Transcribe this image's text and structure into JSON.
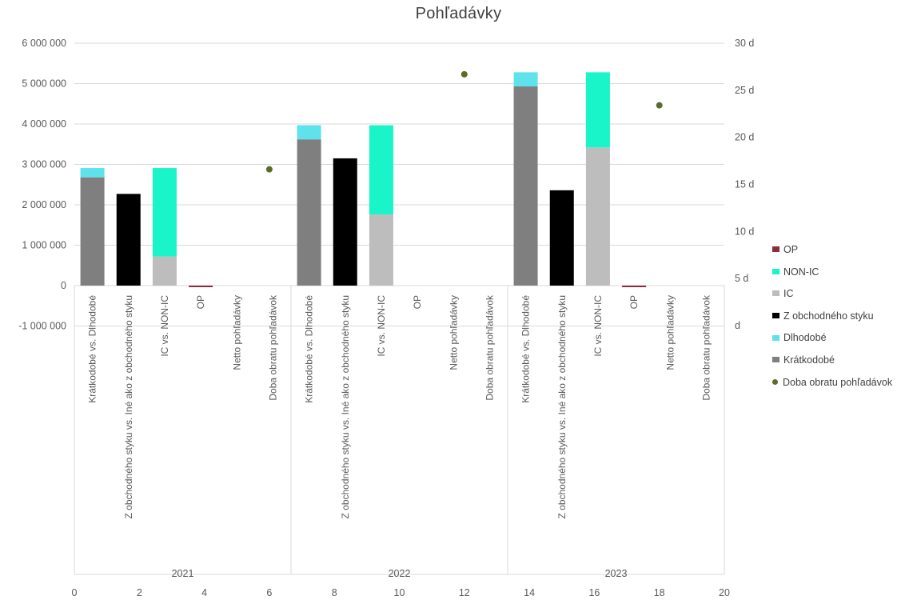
{
  "title": "Pohľadávky",
  "colors": {
    "OP": "#8B2E3C",
    "NON-IC": "#19F5C8",
    "IC": "#BDBDBD",
    "Z obchodného styku": "#000000",
    "Dlhodobé": "#5EE3EC",
    "Krátkodobé": "#7F7F7F",
    "Doba obratu pohľadávok": "#5A6B2A",
    "grid": "#D9D9D9",
    "text": "#595959"
  },
  "legend": [
    {
      "name": "OP",
      "marker": "square",
      "color": "#8B2E3C"
    },
    {
      "name": "NON-IC",
      "marker": "square",
      "color": "#19F5C8"
    },
    {
      "name": "IC",
      "marker": "square",
      "color": "#BDBDBD"
    },
    {
      "name": "Z obchodného styku",
      "marker": "square",
      "color": "#000000"
    },
    {
      "name": "Dlhodobé",
      "marker": "square",
      "color": "#5EE3EC"
    },
    {
      "name": "Krátkodobé",
      "marker": "square",
      "color": "#7F7F7F"
    },
    {
      "name": "Doba obratu pohľadávok",
      "marker": "dot",
      "color": "#5A6B2A"
    }
  ],
  "chart_data": {
    "type": "bar",
    "title": "Pohľadávky",
    "stacked": true,
    "legend_position": "right",
    "grid": true,
    "y_left": {
      "min": -1000000,
      "max": 6000000,
      "ticks": [
        -1000000,
        0,
        1000000,
        2000000,
        3000000,
        4000000,
        5000000,
        6000000
      ],
      "tick_labels": [
        "-1 000 000",
        "0",
        "1 000 000",
        "2 000 000",
        "3 000 000",
        "4 000 000",
        "5 000 000",
        "6 000 000"
      ]
    },
    "y_right": {
      "min": 0,
      "max": 30,
      "ticks": [
        0,
        5,
        10,
        15,
        20,
        25,
        30
      ],
      "tick_labels": [
        "d",
        "5 d",
        "10 d",
        "15 d",
        "20 d",
        "25 d",
        "30 d"
      ]
    },
    "x_secondary": {
      "min": 0,
      "max": 20,
      "ticks": [
        0,
        2,
        4,
        6,
        8,
        10,
        12,
        14,
        16,
        18,
        20
      ],
      "tick_labels": [
        "0",
        "2",
        "4",
        "6",
        "8",
        "10",
        "12",
        "14",
        "16",
        "18",
        "20"
      ]
    },
    "groups": [
      {
        "year": "2021",
        "categories": [
          {
            "label": "Krátkodobé vs. Dlhodobé",
            "segments": [
              {
                "series": "Krátkodobé",
                "value": 2680000
              },
              {
                "series": "Dlhodobé",
                "value": 230000
              }
            ]
          },
          {
            "label": "Z obchodného styku vs. Iné ako z obchodného styku",
            "segments": [
              {
                "series": "Z obchodného styku",
                "value": 2270000
              }
            ]
          },
          {
            "label": "IC vs. NON-IC",
            "segments": [
              {
                "series": "IC",
                "value": 720000
              },
              {
                "series": "NON-IC",
                "value": 2190000
              }
            ]
          },
          {
            "label": "OP",
            "segments": [
              {
                "series": "OP",
                "value": -30000
              }
            ]
          },
          {
            "label": "Netto pohľadávky",
            "segments": []
          },
          {
            "label": "Doba obratu pohľadávok",
            "segments": []
          }
        ],
        "doba_obratu": {
          "x": 6,
          "days": 16.6
        }
      },
      {
        "year": "2022",
        "categories": [
          {
            "label": "Krátkodobé vs. Dlhodobé",
            "segments": [
              {
                "series": "Krátkodobé",
                "value": 3620000
              },
              {
                "series": "Dlhodobé",
                "value": 350000
              }
            ]
          },
          {
            "label": "Z obchodného styku vs. Iné ako z obchodného styku",
            "segments": [
              {
                "series": "Z obchodného styku",
                "value": 3150000
              }
            ]
          },
          {
            "label": "IC vs. NON-IC",
            "segments": [
              {
                "series": "IC",
                "value": 1760000
              },
              {
                "series": "NON-IC",
                "value": 2210000
              }
            ]
          },
          {
            "label": "OP",
            "segments": []
          },
          {
            "label": "Netto pohľadávky",
            "segments": []
          },
          {
            "label": "Doba obratu pohľadávok",
            "segments": []
          }
        ],
        "doba_obratu": {
          "x": 12,
          "days": 26.7
        }
      },
      {
        "year": "2023",
        "categories": [
          {
            "label": "Krátkodobé vs. Dlhodobé",
            "segments": [
              {
                "series": "Krátkodobé",
                "value": 4930000
              },
              {
                "series": "Dlhodobé",
                "value": 350000
              }
            ]
          },
          {
            "label": "Z obchodného styku vs. Iné ako z obchodného styku",
            "segments": [
              {
                "series": "Z obchodného styku",
                "value": 2360000
              }
            ]
          },
          {
            "label": "IC vs. NON-IC",
            "segments": [
              {
                "series": "IC",
                "value": 3420000
              },
              {
                "series": "NON-IC",
                "value": 1860000
              }
            ]
          },
          {
            "label": "OP",
            "segments": [
              {
                "series": "OP",
                "value": -30000
              }
            ]
          },
          {
            "label": "Netto pohľadávky",
            "segments": []
          },
          {
            "label": "Doba obratu pohľadávok",
            "segments": []
          }
        ],
        "doba_obratu": {
          "x": 18,
          "days": 23.4
        }
      }
    ]
  }
}
